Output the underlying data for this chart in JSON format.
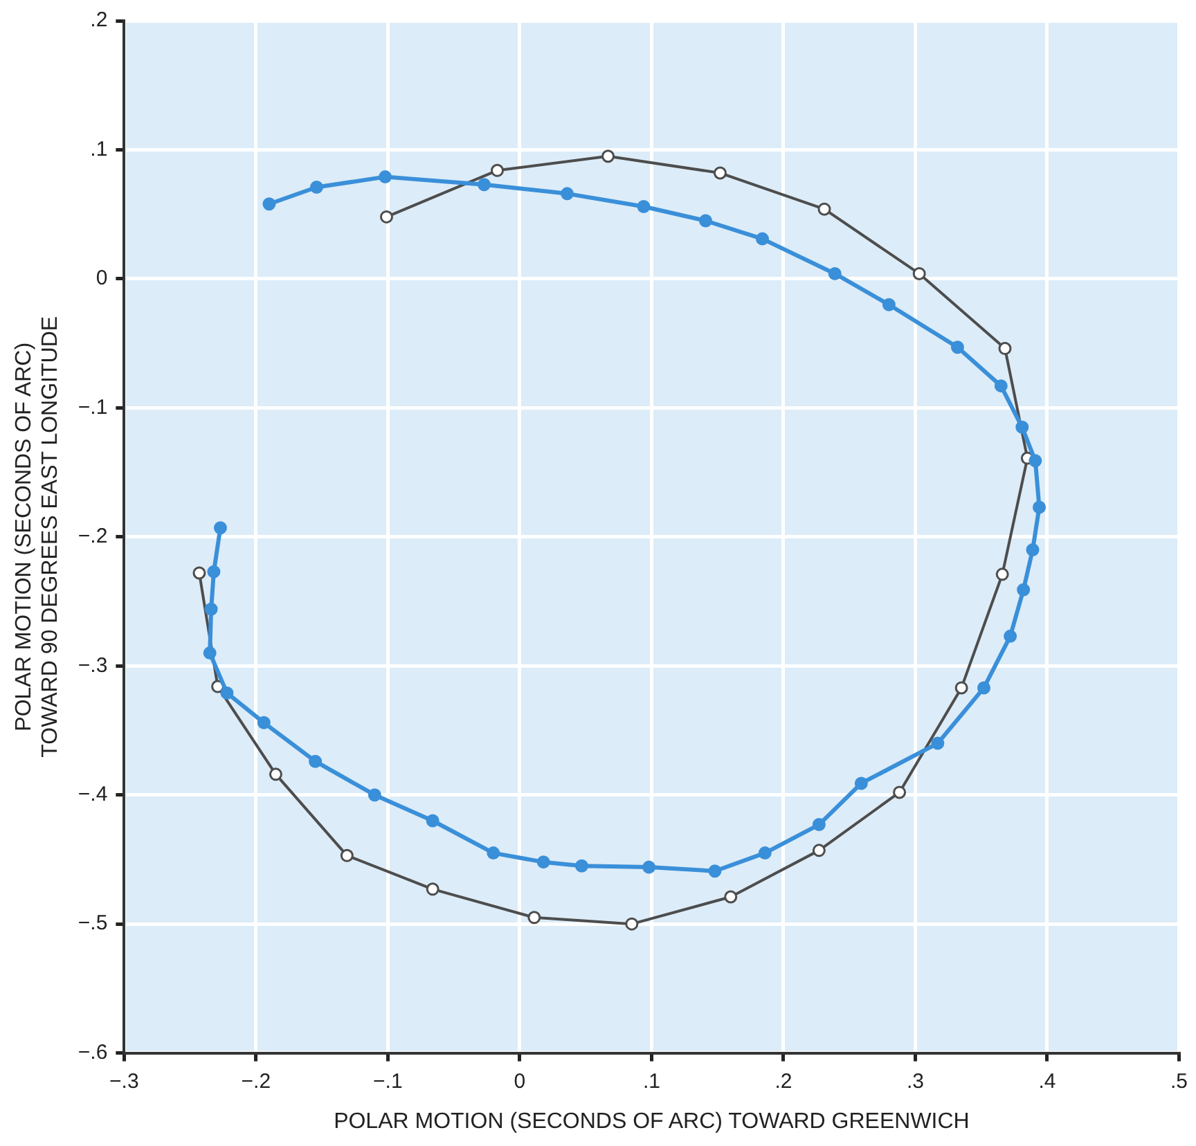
{
  "chart_data": {
    "type": "line",
    "xlabel": "POLAR MOTION (SECONDS OF ARC) TOWARD GREENWICH",
    "ylabel": "POLAR MOTION (SECONDS OF ARC)\nTOWARD 90 DEGREES EAST LONGITUDE",
    "xlim": [
      -0.3,
      0.5
    ],
    "ylim": [
      -0.6,
      0.2
    ],
    "xticks": [
      {
        "value": -0.3,
        "label": "−.3"
      },
      {
        "value": -0.2,
        "label": "−.2"
      },
      {
        "value": -0.1,
        "label": "−.1"
      },
      {
        "value": 0,
        "label": "0"
      },
      {
        "value": 0.1,
        "label": ".1"
      },
      {
        "value": 0.2,
        "label": ".2"
      },
      {
        "value": 0.3,
        "label": ".3"
      },
      {
        "value": 0.4,
        "label": ".4"
      },
      {
        "value": 0.5,
        "label": ".5"
      }
    ],
    "yticks": [
      {
        "value": -0.6,
        "label": "−.6"
      },
      {
        "value": -0.5,
        "label": "−.5"
      },
      {
        "value": -0.4,
        "label": "−.4"
      },
      {
        "value": -0.3,
        "label": "−.3"
      },
      {
        "value": -0.2,
        "label": "−.2"
      },
      {
        "value": -0.1,
        "label": "−.1"
      },
      {
        "value": 0,
        "label": "0"
      },
      {
        "value": 0.1,
        "label": ".1"
      },
      {
        "value": 0.2,
        "label": ".2"
      }
    ],
    "grid": true,
    "legend": false,
    "marker": "circle",
    "line_style": "solid",
    "series": [
      {
        "color": "#3a8fd9",
        "x": [
          -0.19,
          -0.154,
          -0.102,
          -0.027,
          0.036,
          0.094,
          0.141,
          0.184,
          0.239,
          0.28,
          0.332,
          0.365,
          0.381,
          0.391,
          0.394,
          0.389,
          0.382,
          0.372,
          0.352,
          0.317,
          0.259,
          0.227,
          0.186,
          0.148,
          0.098,
          0.047,
          0.018,
          -0.02,
          -0.066,
          -0.11,
          -0.155,
          -0.194,
          -0.222,
          -0.235,
          -0.234,
          -0.232,
          -0.227
        ],
        "values": [
          0.058,
          0.071,
          0.079,
          0.073,
          0.066,
          0.056,
          0.045,
          0.031,
          0.004,
          -0.02,
          -0.053,
          -0.083,
          -0.115,
          -0.141,
          -0.177,
          -0.21,
          -0.241,
          -0.277,
          -0.317,
          -0.36,
          -0.391,
          -0.423,
          -0.445,
          -0.459,
          -0.456,
          -0.455,
          -0.452,
          -0.445,
          -0.42,
          -0.4,
          -0.374,
          -0.344,
          -0.321,
          -0.29,
          -0.256,
          -0.227,
          -0.193
        ]
      },
      {
        "color": "#4d4d4d",
        "x": [
          -0.101,
          -0.017,
          0.067,
          0.152,
          0.231,
          0.303,
          0.368,
          0.385,
          0.366,
          0.335,
          0.288,
          0.227,
          0.16,
          0.085,
          0.011,
          -0.066,
          -0.131,
          -0.185,
          -0.229,
          -0.243
        ],
        "values": [
          0.048,
          0.084,
          0.095,
          0.082,
          0.054,
          0.004,
          -0.054,
          -0.139,
          -0.229,
          -0.317,
          -0.398,
          -0.443,
          -0.479,
          -0.5,
          -0.495,
          -0.473,
          -0.447,
          -0.384,
          -0.316,
          -0.228
        ]
      }
    ]
  }
}
